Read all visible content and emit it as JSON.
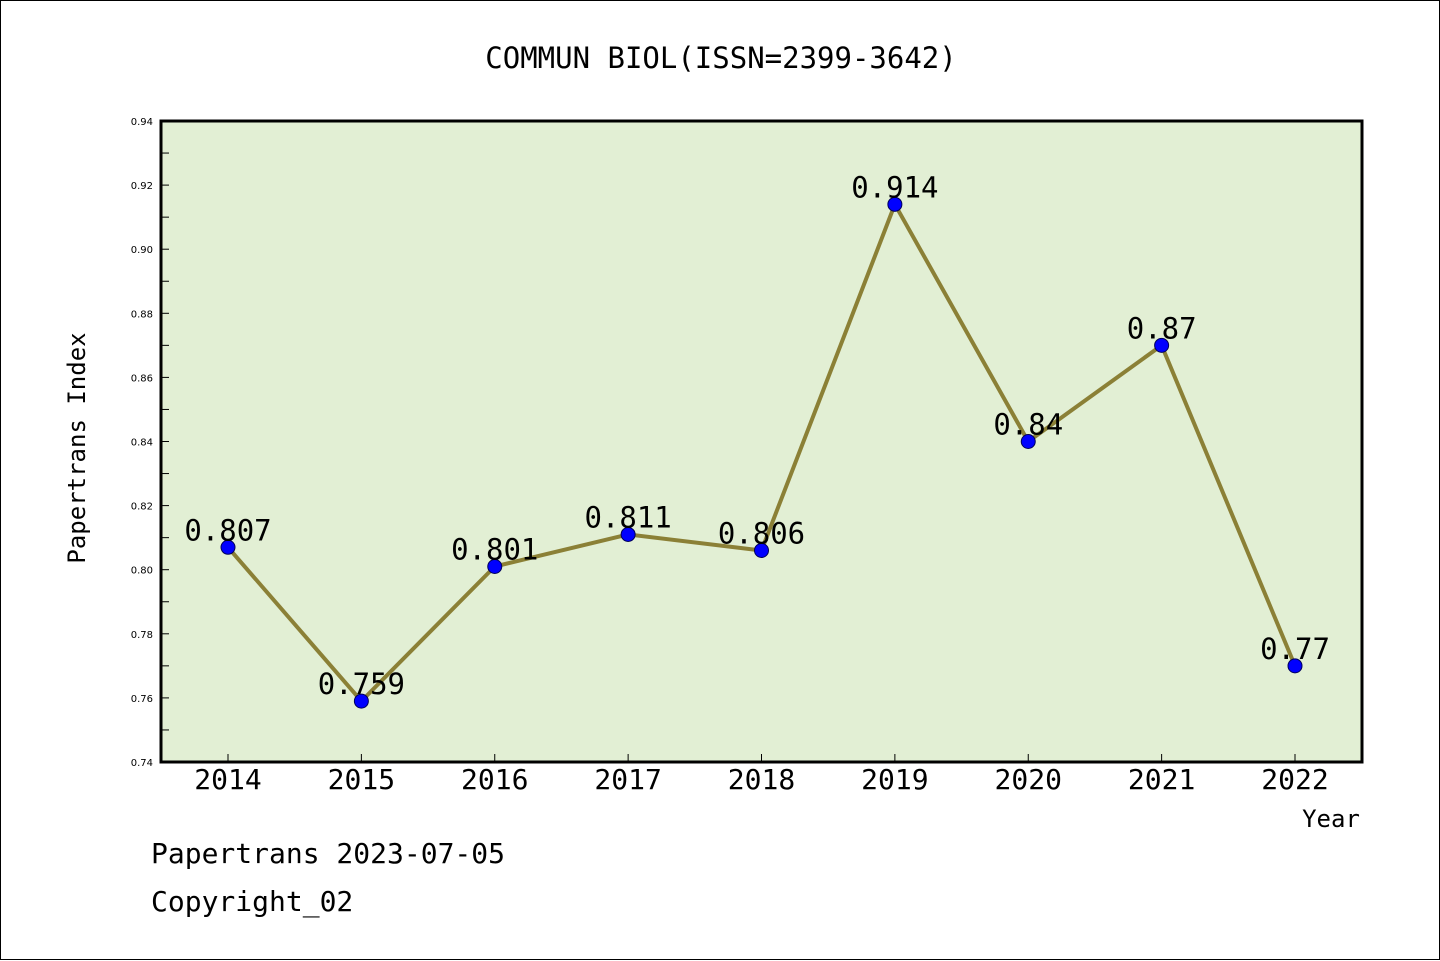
{
  "chart_data": {
    "type": "line",
    "title": "COMMUN BIOL(ISSN=2399-3642)",
    "xlabel": "Year",
    "ylabel": "Papertrans Index",
    "categories": [
      "2014",
      "2015",
      "2016",
      "2017",
      "2018",
      "2019",
      "2020",
      "2021",
      "2022"
    ],
    "series": [
      {
        "values": [
          0.807,
          0.759,
          0.801,
          0.811,
          0.806,
          0.914,
          0.84,
          0.87,
          0.77
        ]
      }
    ],
    "data_labels": [
      "0.807",
      "0.759",
      "0.801",
      "0.811",
      "0.806",
      "0.914",
      "0.84",
      "0.87",
      "0.77"
    ],
    "ylim": [
      0.74,
      0.94
    ],
    "yticks": [
      "0.74",
      "0.76",
      "0.78",
      "0.80",
      "0.82",
      "0.84",
      "0.86",
      "0.88",
      "0.90",
      "0.92",
      "0.94"
    ],
    "grid": false,
    "legend": "none",
    "colors": {
      "plot_background": "#e2efd4",
      "line": "#8b8036",
      "marker": "#0000ff"
    }
  },
  "footer": {
    "line1": "Papertrans 2023-07-05",
    "line2": "Copyright_02"
  }
}
